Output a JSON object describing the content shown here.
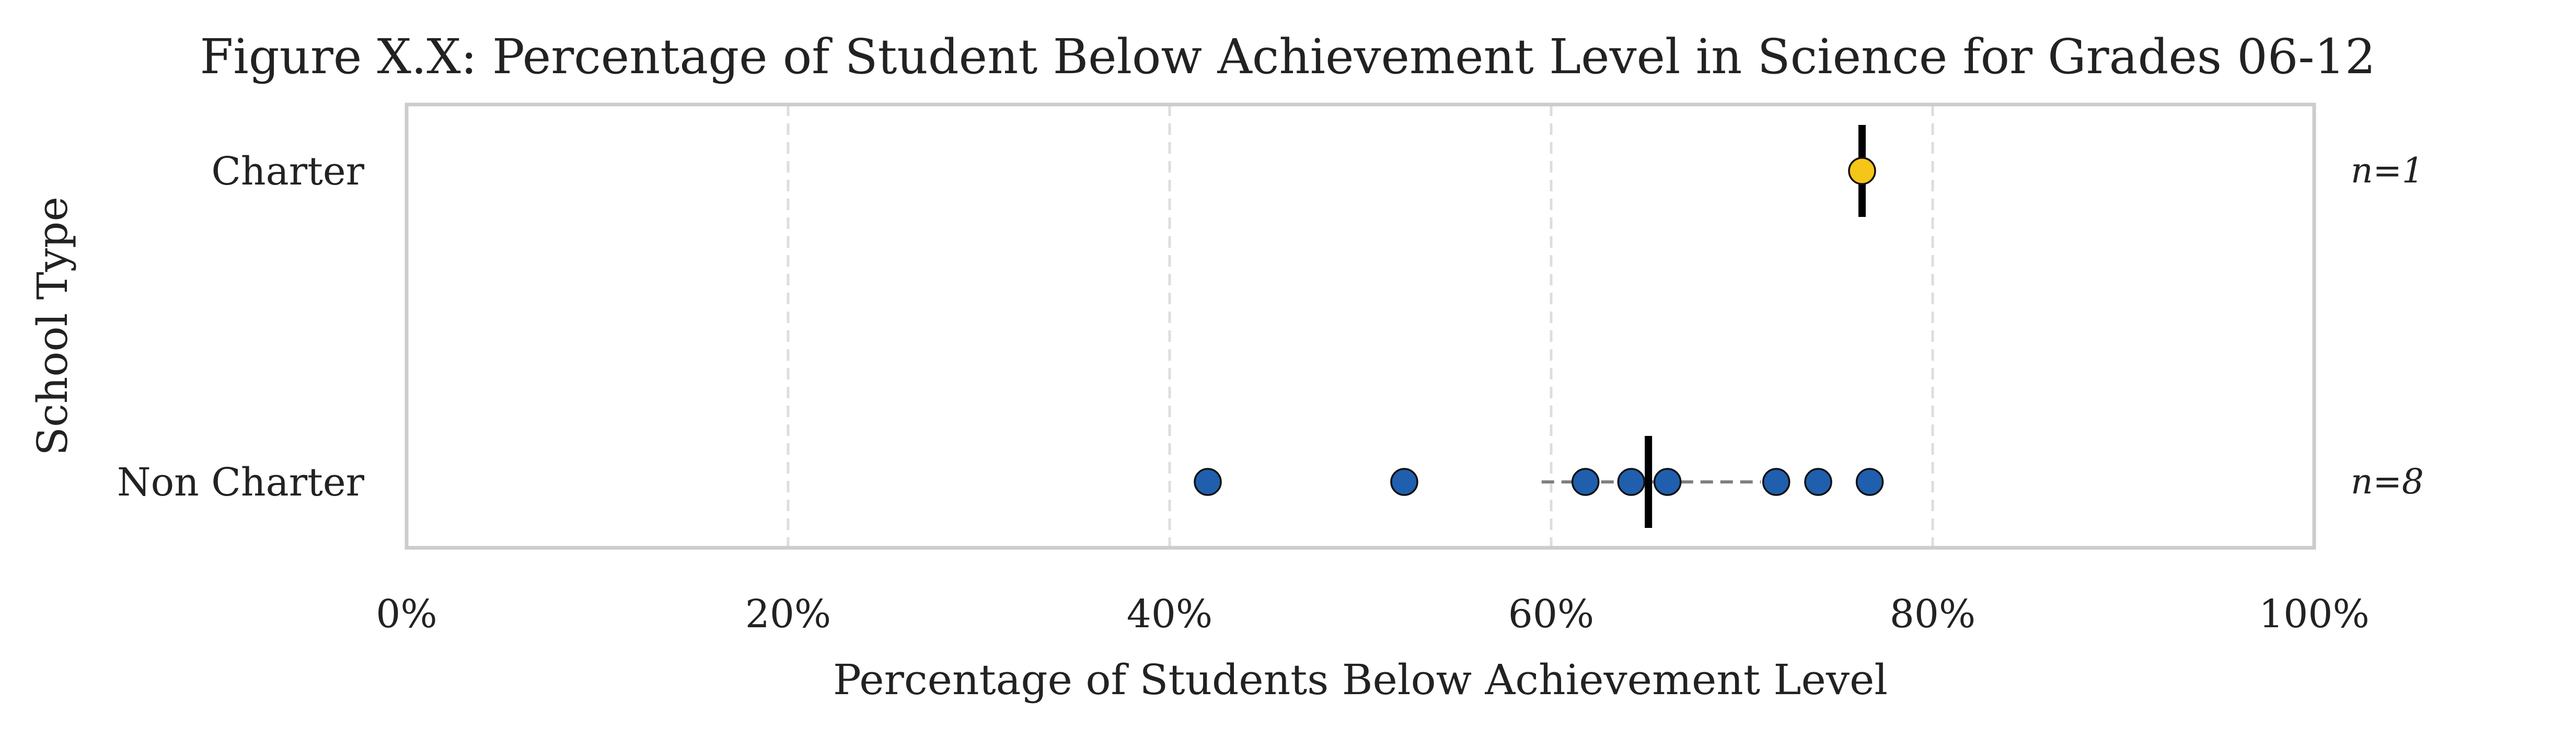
{
  "chart_data": {
    "type": "scatter",
    "title": "Figure X.X: Percentage of Student Below Achievement Level in Science for Grades 06-12",
    "xlabel": "Percentage of Students Below Achievement Level",
    "ylabel": "School Type",
    "xlim": [
      0,
      100
    ],
    "x_ticks": [
      0,
      20,
      40,
      60,
      80,
      100
    ],
    "x_tick_labels": [
      "0%",
      "20%",
      "40%",
      "60%",
      "80%",
      "100%"
    ],
    "grid": "vertical dashed",
    "categories": [
      "Charter",
      "Non Charter"
    ],
    "series": [
      {
        "category": "Charter",
        "n_label": "n=1",
        "color": "#F5C518",
        "values": [
          76.3
        ],
        "median": 76.3,
        "range": null
      },
      {
        "category": "Non Charter",
        "n_label": "n=8",
        "color": "#1F5FAD",
        "values": [
          42.0,
          52.3,
          61.8,
          64.2,
          66.1,
          71.8,
          74.0,
          76.7
        ],
        "median": 65.1,
        "range": [
          59.5,
          71.0
        ]
      }
    ]
  }
}
